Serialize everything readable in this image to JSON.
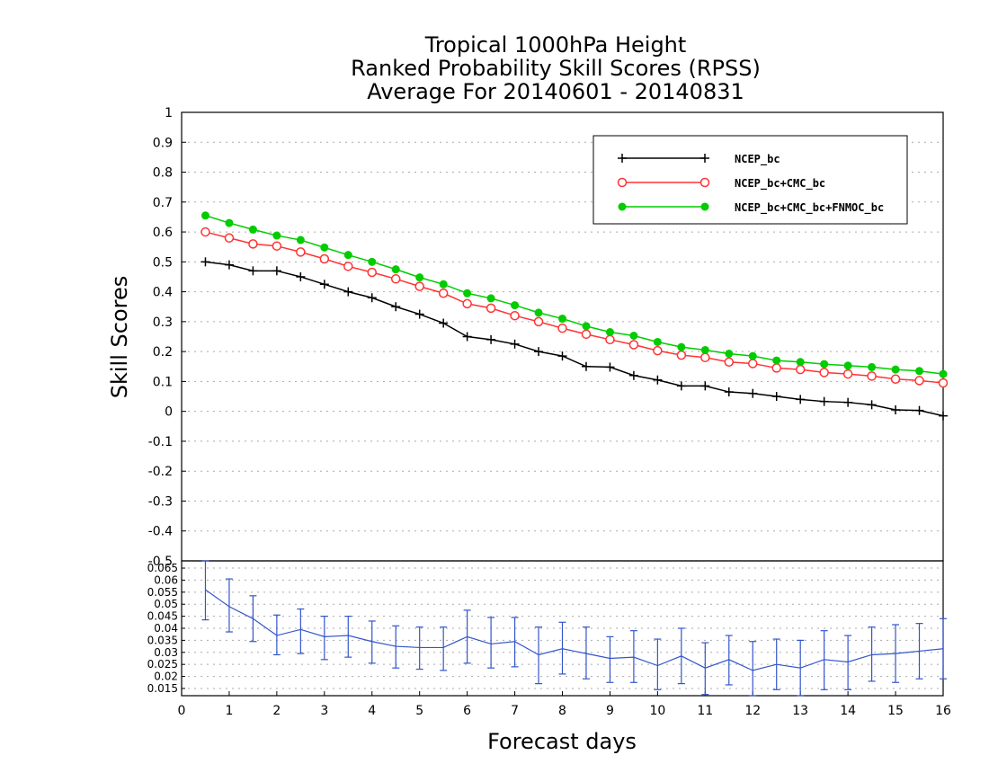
{
  "chart_data": {
    "type": "line",
    "title": [
      "Tropical 1000hPa Height",
      "Ranked Probability Skill Scores (RPSS)",
      "Average For 20140601 - 20140831"
    ],
    "xlabel": "Forecast days",
    "ylabel": "Skill Scores",
    "xlim": [
      0,
      16
    ],
    "x_ticks": [
      "0",
      "1",
      "2",
      "3",
      "4",
      "5",
      "6",
      "7",
      "8",
      "9",
      "10",
      "11",
      "12",
      "13",
      "14",
      "15",
      "16"
    ],
    "ylim": [
      -0.5,
      1
    ],
    "y_ticks": [
      "-0.5",
      "-0.4",
      "-0.3",
      "-0.2",
      "-0.1",
      "0",
      "0.1",
      "0.2",
      "0.3",
      "0.4",
      "0.5",
      "0.6",
      "0.7",
      "0.8",
      "0.9",
      "1"
    ],
    "x": [
      0.5,
      1,
      1.5,
      2,
      2.5,
      3,
      3.5,
      4,
      4.5,
      5,
      5.5,
      6,
      6.5,
      7,
      7.5,
      8,
      8.5,
      9,
      9.5,
      10,
      10.5,
      11,
      11.5,
      12,
      12.5,
      13,
      13.5,
      14,
      14.5,
      15,
      15.5,
      16
    ],
    "grid": true,
    "legend_position": "top-right",
    "series": [
      {
        "name": "NCEP_bc",
        "color": "#000000",
        "marker": "plus",
        "values": [
          0.5,
          0.49,
          0.47,
          0.47,
          0.45,
          0.425,
          0.4,
          0.38,
          0.35,
          0.325,
          0.295,
          0.25,
          0.24,
          0.225,
          0.2,
          0.185,
          0.15,
          0.148,
          0.12,
          0.105,
          0.085,
          0.085,
          0.065,
          0.06,
          0.05,
          0.04,
          0.033,
          0.03,
          0.022,
          0.005,
          0.003,
          -0.015
        ]
      },
      {
        "name": "NCEP_bc+CMC_bc",
        "color": "#ff3333",
        "marker": "open-circle",
        "values": [
          0.6,
          0.58,
          0.56,
          0.553,
          0.533,
          0.51,
          0.485,
          0.465,
          0.443,
          0.418,
          0.395,
          0.36,
          0.345,
          0.32,
          0.3,
          0.278,
          0.258,
          0.24,
          0.223,
          0.203,
          0.188,
          0.18,
          0.165,
          0.16,
          0.145,
          0.14,
          0.13,
          0.125,
          0.118,
          0.108,
          0.103,
          0.095
        ]
      },
      {
        "name": "NCEP_bc+CMC_bc+FNMOC_bc",
        "color": "#00cc00",
        "marker": "filled-circle",
        "values": [
          0.655,
          0.63,
          0.608,
          0.588,
          0.573,
          0.548,
          0.523,
          0.5,
          0.475,
          0.448,
          0.425,
          0.395,
          0.378,
          0.355,
          0.33,
          0.31,
          0.285,
          0.265,
          0.253,
          0.232,
          0.215,
          0.205,
          0.193,
          0.185,
          0.17,
          0.165,
          0.158,
          0.153,
          0.148,
          0.14,
          0.135,
          0.125
        ]
      }
    ],
    "error_panel": {
      "ylim": [
        0.012,
        0.068
      ],
      "y_ticks": [
        "0.015",
        "0.02",
        "0.025",
        "0.03",
        "0.035",
        "0.04",
        "0.045",
        "0.05",
        "0.055",
        "0.06",
        "0.065"
      ],
      "color": "#3355cc",
      "values": [
        0.056,
        0.049,
        0.044,
        0.037,
        0.0395,
        0.0365,
        0.037,
        0.0345,
        0.0325,
        0.032,
        0.032,
        0.0365,
        0.0335,
        0.0345,
        0.029,
        0.0315,
        0.0295,
        0.0275,
        0.028,
        0.0245,
        0.0285,
        0.0235,
        0.027,
        0.0225,
        0.025,
        0.0235,
        0.027,
        0.026,
        0.029,
        0.0295,
        0.0305,
        0.0315
      ],
      "lower": [
        0.0435,
        0.0385,
        0.0345,
        0.029,
        0.0295,
        0.027,
        0.028,
        0.0255,
        0.0235,
        0.023,
        0.0225,
        0.0255,
        0.0235,
        0.024,
        0.017,
        0.021,
        0.019,
        0.0175,
        0.0175,
        0.0145,
        0.017,
        0.0125,
        0.0165,
        0.0105,
        0.0145,
        0.012,
        0.0145,
        0.0145,
        0.018,
        0.0175,
        0.019,
        0.019
      ],
      "upper": [
        0.068,
        0.0605,
        0.0535,
        0.0455,
        0.048,
        0.045,
        0.045,
        0.043,
        0.041,
        0.0405,
        0.0405,
        0.0475,
        0.0445,
        0.0445,
        0.0405,
        0.0425,
        0.0405,
        0.0365,
        0.039,
        0.0355,
        0.04,
        0.034,
        0.037,
        0.0345,
        0.0355,
        0.035,
        0.039,
        0.037,
        0.0405,
        0.0415,
        0.042,
        0.044
      ]
    }
  }
}
